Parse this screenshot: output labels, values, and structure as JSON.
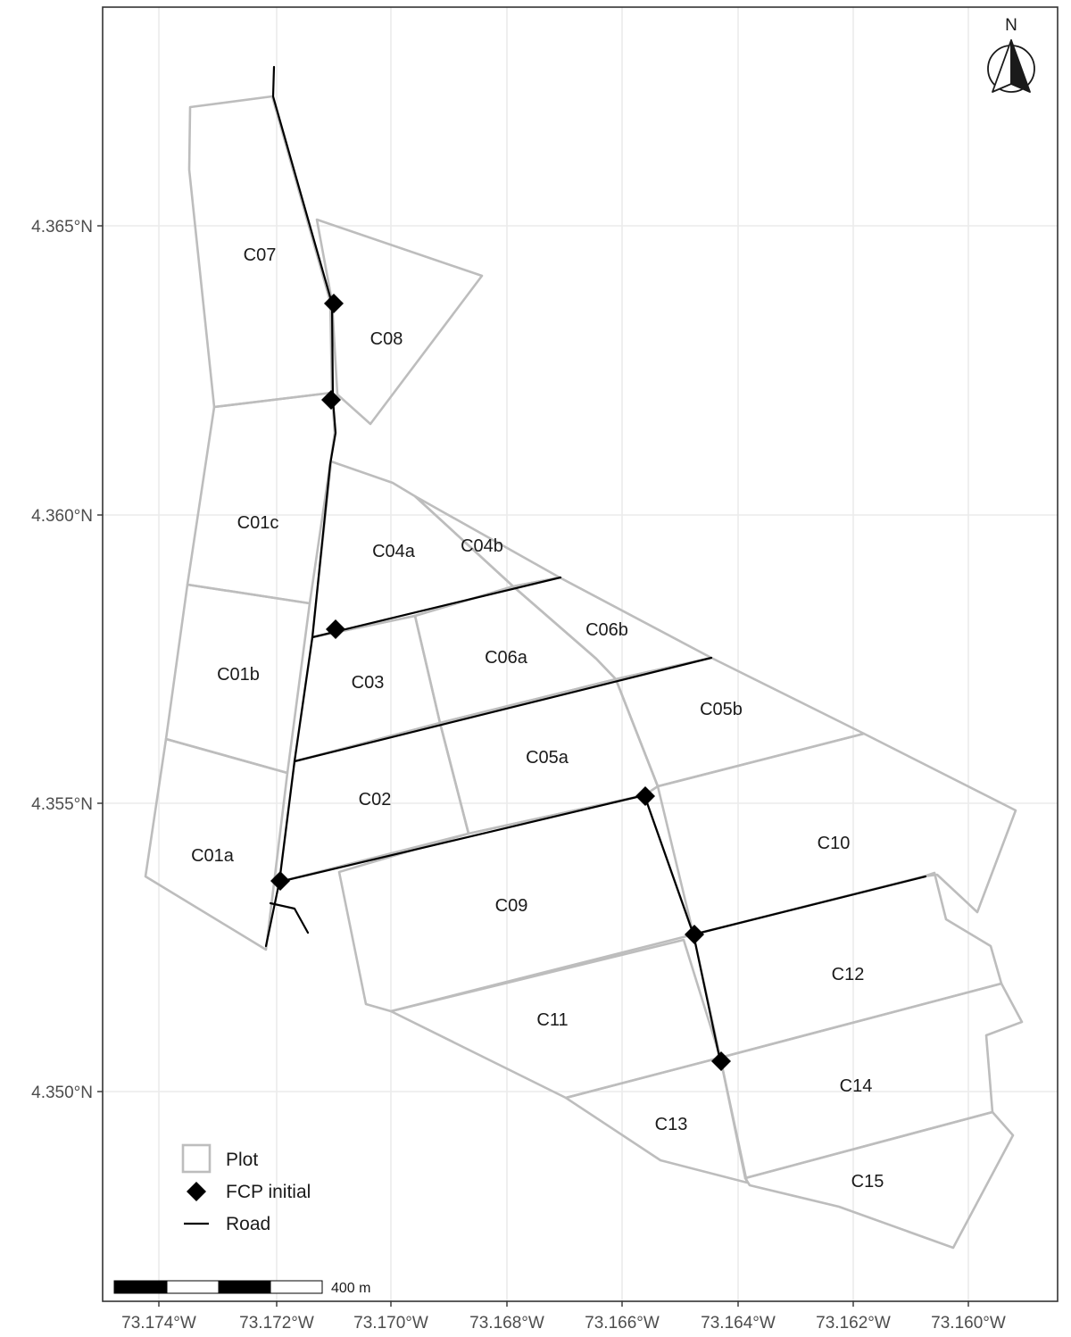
{
  "map": {
    "x_axis_labels": [
      "73.174°W",
      "73.172°W",
      "73.170°W",
      "73.168°W",
      "73.166°W",
      "73.164°W",
      "73.162°W",
      "73.160°W"
    ],
    "y_axis_labels": [
      "4.365°N",
      "4.360°N",
      "4.355°N",
      "4.350°N"
    ],
    "north_label": "N",
    "scale_label": "400 m",
    "plot_labels": [
      "C07",
      "C08",
      "C01c",
      "C04a",
      "C04b",
      "C06b",
      "C06a",
      "C01b",
      "C03",
      "C05b",
      "C05a",
      "C02",
      "C10",
      "C01a",
      "C09",
      "C12",
      "C11",
      "C14",
      "C13",
      "C15"
    ],
    "legend": {
      "plot": "Plot",
      "fcp": "FCP initial",
      "road": "Road"
    },
    "colors": {
      "plot_outline": "#bdbdbd",
      "road": "#000000",
      "fcp_marker": "#000000",
      "grid": "#ebebeb",
      "panel_border": "#333333"
    }
  }
}
